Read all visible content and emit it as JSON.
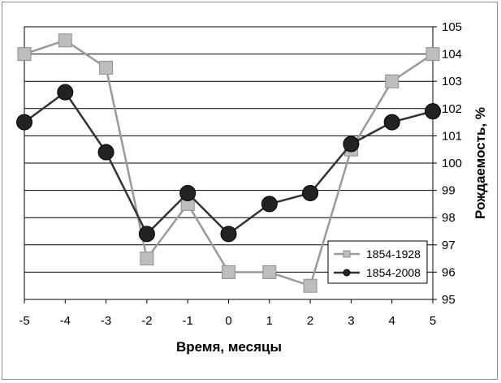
{
  "chart_data": {
    "type": "line",
    "x": [
      -5,
      -4,
      -3,
      -2,
      -1,
      0,
      1,
      2,
      3,
      4,
      5
    ],
    "xlabel": "Время, месяцы",
    "ylabel": "Рождаемость, %",
    "xlim": [
      -5,
      5
    ],
    "ylim": [
      95,
      105
    ],
    "y_axis_side": "right",
    "grid": "horizontal",
    "legend_position": "lower-right",
    "series": [
      {
        "name": "1854-1928",
        "color": "#9a9a9a",
        "marker": "square",
        "marker_color": "#bdbdbd",
        "values": [
          104,
          104.5,
          103.5,
          96.5,
          98.5,
          96,
          96,
          95.5,
          100.5,
          103,
          104
        ]
      },
      {
        "name": "1854-2008",
        "color": "#333333",
        "marker": "circle",
        "marker_color": "#222222",
        "values": [
          101.5,
          102.6,
          100.4,
          97.4,
          98.9,
          97.4,
          98.5,
          98.9,
          100.7,
          101.5,
          101.9
        ]
      }
    ]
  }
}
